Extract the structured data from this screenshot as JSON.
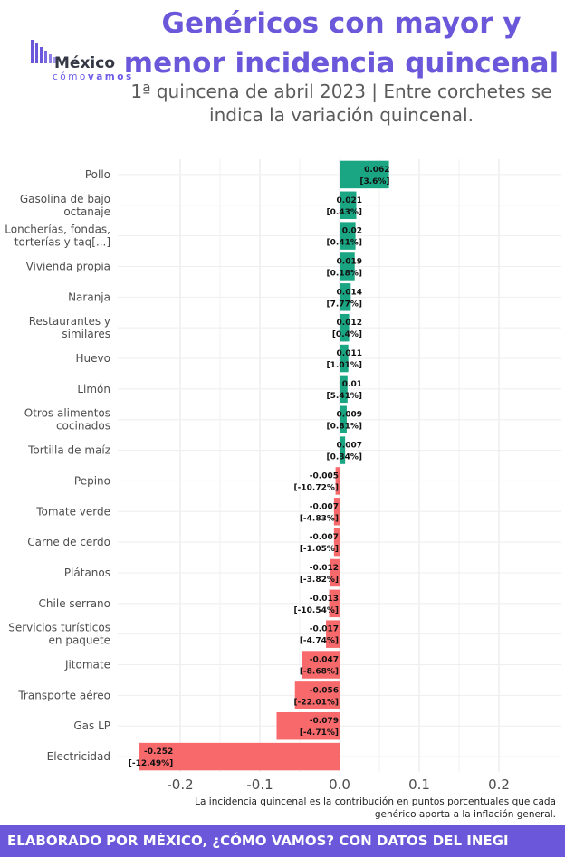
{
  "header": {
    "title": "Genéricos con mayor y menor incidencia quincenal",
    "subtitle": "1ª quincena de abril 2023 | Entre corchetes se indica la variación quincenal."
  },
  "logo": {
    "main": "México",
    "sub_light": "cómo",
    "sub_bold": "vamos"
  },
  "note": "La incidencia quincenal es la contribución en puntos porcentuales que cada genérico aporta a la inflación general.",
  "footer": "ELABORADO POR MÉXICO, ¿CÓMO VAMOS? CON DATOS DEL INEGI",
  "colors": {
    "positive": "#1aa583",
    "negative": "#f8696b",
    "title": "#6a57d9",
    "footer_bg": "#6a57d9"
  },
  "chart_data": {
    "type": "bar",
    "orientation": "horizontal",
    "categories": [
      "Pollo",
      "Gasolina de bajo octanaje",
      "Loncherías, fondas, torterías y taq[...]",
      "Vivienda propia",
      "Naranja",
      "Restaurantes y similares",
      "Huevo",
      "Limón",
      "Otros alimentos cocinados",
      "Tortilla de maíz",
      "Pepino",
      "Tomate verde",
      "Carne de cerdo",
      "Plátanos",
      "Chile serrano",
      "Servicios turísticos en paquete",
      "Jitomate",
      "Transporte aéreo",
      "Gas LP",
      "Electricidad"
    ],
    "category_lines": [
      [
        "Pollo"
      ],
      [
        "Gasolina de bajo",
        "octanaje"
      ],
      [
        "Loncherías, fondas,",
        "torterías y taq[...]"
      ],
      [
        "Vivienda propia"
      ],
      [
        "Naranja"
      ],
      [
        "Restaurantes y",
        "similares"
      ],
      [
        "Huevo"
      ],
      [
        "Limón"
      ],
      [
        "Otros alimentos",
        "cocinados"
      ],
      [
        "Tortilla de maíz"
      ],
      [
        "Pepino"
      ],
      [
        "Tomate verde"
      ],
      [
        "Carne de cerdo"
      ],
      [
        "Plátanos"
      ],
      [
        "Chile serrano"
      ],
      [
        "Servicios turísticos",
        "en paquete"
      ],
      [
        "Jitomate"
      ],
      [
        "Transporte aéreo"
      ],
      [
        "Gas LP"
      ],
      [
        "Electricidad"
      ]
    ],
    "values": [
      0.062,
      0.021,
      0.02,
      0.019,
      0.014,
      0.012,
      0.011,
      0.01,
      0.009,
      0.007,
      -0.005,
      -0.007,
      -0.007,
      -0.012,
      -0.013,
      -0.017,
      -0.047,
      -0.056,
      -0.079,
      -0.252
    ],
    "value_labels": [
      "0.062",
      "0.021",
      "0.02",
      "0.019",
      "0.014",
      "0.012",
      "0.011",
      "0.01",
      "0.009",
      "0.007",
      "-0.005",
      "-0.007",
      "-0.007",
      "-0.012",
      "-0.013",
      "-0.017",
      "-0.047",
      "-0.056",
      "-0.079",
      "-0.252"
    ],
    "variation_labels": [
      "[3.6%]",
      "[0.43%]",
      "[0.41%]",
      "[0.18%]",
      "[7.77%]",
      "[0.4%]",
      "[1.01%]",
      "[5.41%]",
      "[0.81%]",
      "[0.34%]",
      "[-10.72%]",
      "[-4.83%]",
      "[-1.05%]",
      "[-3.82%]",
      "[-10.54%]",
      "[-4.74%]",
      "[-8.68%]",
      "[-22.01%]",
      "[-4.71%]",
      "[-12.49%]"
    ],
    "x_ticks": [
      -0.2,
      -0.1,
      0.0,
      0.1,
      0.2
    ],
    "x_tick_labels": [
      "-0.2",
      "-0.1",
      "0.0",
      "0.1",
      "0.2"
    ],
    "xlim": [
      -0.265,
      0.265
    ],
    "xlabel": "",
    "ylabel": "",
    "grid": true
  }
}
